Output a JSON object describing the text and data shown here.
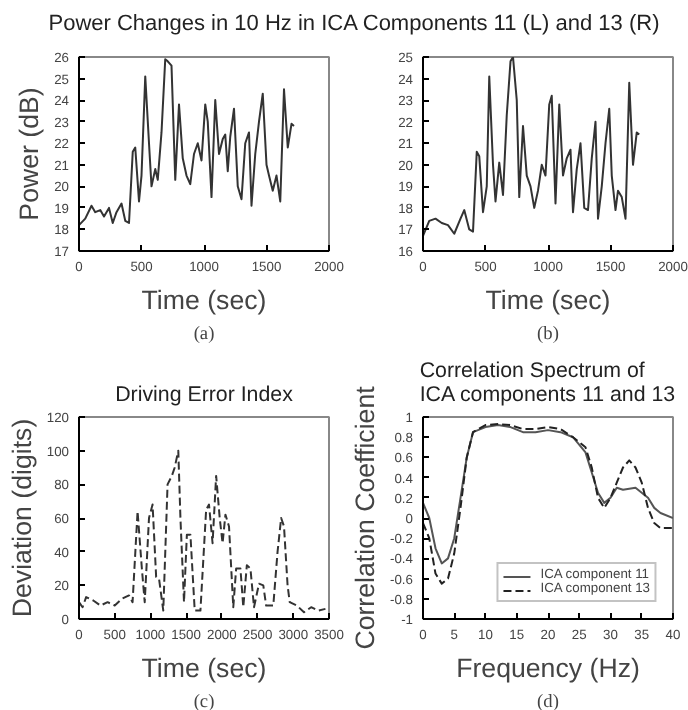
{
  "chart_data": [
    {
      "type": "line",
      "title": "Power Changes in 10 Hz in ICA Components 11 (L) and 13 (R)",
      "xlabel": "Time (sec)",
      "ylabel": "Power (dB)",
      "annotations": [
        "(a)"
      ],
      "xlim": [
        0,
        2000
      ],
      "xticks": [
        0,
        500,
        1000,
        1500,
        2000
      ],
      "ylim": [
        17,
        26
      ],
      "yticks": [
        17,
        18,
        19,
        20,
        21,
        22,
        23,
        24,
        25,
        26
      ],
      "series": [
        {
          "color": "#333333",
          "x": [
            0,
            50,
            100,
            130,
            170,
            200,
            240,
            270,
            300,
            340,
            370,
            400,
            430,
            450,
            480,
            500,
            530,
            560,
            580,
            610,
            630,
            660,
            690,
            710,
            740,
            770,
            800,
            830,
            860,
            890,
            920,
            950,
            980,
            1010,
            1030,
            1060,
            1090,
            1120,
            1150,
            1170,
            1190,
            1210,
            1240,
            1270,
            1300,
            1330,
            1360,
            1380,
            1410,
            1440,
            1470,
            1500,
            1520,
            1550,
            1580,
            1610,
            1640,
            1670,
            1700,
            1720
          ],
          "values": [
            18.2,
            18.5,
            19.1,
            18.8,
            18.9,
            18.6,
            19.0,
            18.3,
            18.8,
            19.2,
            18.4,
            18.3,
            21.6,
            21.8,
            19.3,
            20.5,
            25.1,
            22.0,
            20.0,
            20.8,
            20.3,
            22.5,
            25.9,
            25.8,
            25.6,
            20.3,
            23.8,
            21.3,
            20.5,
            20.1,
            21.5,
            22.0,
            21.2,
            23.8,
            23.0,
            19.5,
            24.0,
            21.5,
            22.2,
            22.4,
            20.7,
            22.3,
            23.6,
            20.0,
            19.4,
            22.0,
            22.5,
            19.1,
            21.5,
            23.0,
            24.3,
            21.0,
            20.5,
            19.8,
            20.5,
            19.3,
            24.5,
            21.8,
            22.9,
            22.8
          ]
        }
      ]
    },
    {
      "type": "line",
      "xlabel": "Time (sec)",
      "annotations": [
        "(b)"
      ],
      "xlim": [
        0,
        2000
      ],
      "xticks": [
        0,
        500,
        1000,
        1500,
        2000
      ],
      "ylim": [
        16,
        25
      ],
      "yticks": [
        16,
        17,
        18,
        19,
        20,
        21,
        22,
        23,
        24,
        25
      ],
      "series": [
        {
          "color": "#333333",
          "x": [
            0,
            50,
            100,
            150,
            200,
            250,
            300,
            330,
            370,
            400,
            430,
            450,
            480,
            510,
            530,
            560,
            580,
            610,
            640,
            670,
            700,
            720,
            750,
            770,
            800,
            830,
            860,
            890,
            920,
            950,
            980,
            1010,
            1030,
            1060,
            1090,
            1120,
            1150,
            1180,
            1200,
            1230,
            1260,
            1290,
            1320,
            1350,
            1380,
            1400,
            1430,
            1460,
            1490,
            1510,
            1540,
            1560,
            1590,
            1620,
            1650,
            1680,
            1710,
            1730
          ],
          "values": [
            16.7,
            17.4,
            17.5,
            17.3,
            17.2,
            16.8,
            17.5,
            17.9,
            17.0,
            16.9,
            20.6,
            20.4,
            17.8,
            19.0,
            24.1,
            20.0,
            18.3,
            20.1,
            18.6,
            22.3,
            24.8,
            25.0,
            23.0,
            18.5,
            21.8,
            19.5,
            19.0,
            18.0,
            18.8,
            20.0,
            19.5,
            22.8,
            23.2,
            18.2,
            22.8,
            19.5,
            20.3,
            20.7,
            17.8,
            19.8,
            21.0,
            18.0,
            17.9,
            20.3,
            22.0,
            17.5,
            19.0,
            21.0,
            22.6,
            19.5,
            17.9,
            18.8,
            18.5,
            17.5,
            23.8,
            20.0,
            21.5,
            21.4
          ]
        }
      ]
    },
    {
      "type": "line",
      "title": "Driving Error Index",
      "xlabel": "Time (sec)",
      "ylabel": "Deviation (digits)",
      "annotations": [
        "(c)"
      ],
      "xlim": [
        0,
        3500
      ],
      "xticks": [
        0,
        500,
        1000,
        1500,
        2000,
        2500,
        3000,
        3500
      ],
      "ylim": [
        0,
        120
      ],
      "yticks": [
        0,
        20,
        40,
        60,
        80,
        100,
        120
      ],
      "series": [
        {
          "color": "#333333",
          "line_style": "dashed",
          "x": [
            0,
            50,
            100,
            200,
            300,
            400,
            500,
            600,
            700,
            750,
            820,
            880,
            920,
            980,
            1030,
            1080,
            1120,
            1180,
            1240,
            1300,
            1340,
            1390,
            1420,
            1470,
            1510,
            1560,
            1620,
            1700,
            1780,
            1820,
            1870,
            1920,
            1970,
            2010,
            2050,
            2100,
            2160,
            2200,
            2260,
            2300,
            2350,
            2400,
            2450,
            2520,
            2580,
            2620,
            2720,
            2780,
            2830,
            2870,
            2920,
            2950,
            3050,
            3150,
            3250,
            3350,
            3450
          ],
          "values": [
            10,
            7,
            13,
            11,
            8,
            10,
            8,
            12,
            14,
            10,
            64,
            30,
            10,
            60,
            68,
            25,
            24,
            5,
            80,
            85,
            90,
            100,
            60,
            10,
            50,
            50,
            5,
            5,
            65,
            68,
            45,
            85,
            60,
            45,
            62,
            55,
            7,
            30,
            30,
            7,
            32,
            30,
            7,
            21,
            20,
            8,
            8,
            40,
            60,
            55,
            20,
            10,
            8,
            4,
            7,
            5,
            6
          ]
        }
      ]
    },
    {
      "type": "line",
      "title": "Correlation Spectrum of\nICA components 11 and 13",
      "xlabel": "Frequency (Hz)",
      "ylabel": "Correlation Coefficient",
      "annotations": [
        "(d)"
      ],
      "legend": "bottom right",
      "xlim": [
        0,
        40
      ],
      "xticks": [
        0,
        5,
        10,
        15,
        20,
        25,
        30,
        35,
        40
      ],
      "ylim": [
        -1,
        1
      ],
      "yticks": [
        -1,
        -0.8,
        -0.6,
        -0.4,
        -0.2,
        0,
        0.2,
        0.4,
        0.6,
        0.8,
        1
      ],
      "series": [
        {
          "name": "ICA component 11",
          "color": "#555555",
          "line_style": "solid",
          "x": [
            0,
            1,
            2,
            3,
            4,
            5,
            6,
            7,
            8,
            10,
            12,
            14,
            16,
            18,
            20,
            22,
            24,
            26,
            27,
            28,
            29,
            30,
            31,
            32,
            34,
            35,
            36,
            37,
            38,
            40
          ],
          "values": [
            0.15,
            0,
            -0.3,
            -0.45,
            -0.4,
            -0.2,
            0.2,
            0.6,
            0.85,
            0.9,
            0.92,
            0.9,
            0.85,
            0.85,
            0.87,
            0.85,
            0.8,
            0.65,
            0.45,
            0.25,
            0.15,
            0.2,
            0.3,
            0.28,
            0.3,
            0.25,
            0.2,
            0.1,
            0.05,
            0
          ]
        },
        {
          "name": "ICA component 13",
          "color": "#222222",
          "line_style": "dashed",
          "x": [
            0,
            1,
            2,
            3,
            4,
            5,
            6,
            7,
            8,
            10,
            12,
            14,
            16,
            18,
            20,
            22,
            24,
            26,
            27,
            28,
            29,
            30,
            31,
            32,
            33,
            34,
            35,
            36,
            37,
            38,
            40
          ],
          "values": [
            -0.05,
            -0.2,
            -0.55,
            -0.65,
            -0.6,
            -0.35,
            0.1,
            0.6,
            0.85,
            0.92,
            0.93,
            0.92,
            0.88,
            0.88,
            0.9,
            0.88,
            0.8,
            0.7,
            0.5,
            0.2,
            0.1,
            0.2,
            0.35,
            0.5,
            0.57,
            0.5,
            0.35,
            0.1,
            -0.05,
            -0.1,
            -0.1
          ]
        }
      ]
    }
  ]
}
